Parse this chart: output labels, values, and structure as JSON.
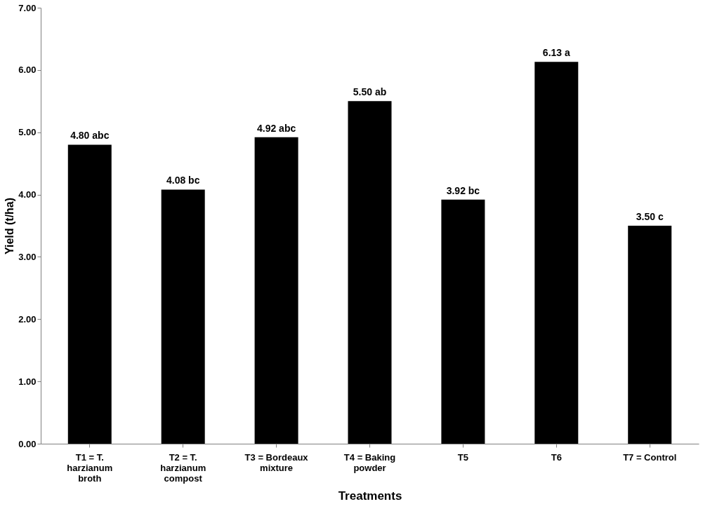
{
  "chart_data": {
    "type": "bar",
    "xlabel": "Treatments",
    "ylabel": "Yield (t/ha)",
    "categories": [
      "T1 = T. harzianum broth",
      "T2 = T. harzianum compost",
      "T3 = Bordeaux mixture",
      "T4 = Baking powder",
      "T5",
      "T6",
      "T7 = Control"
    ],
    "values": [
      4.8,
      4.08,
      4.92,
      5.5,
      3.92,
      6.13,
      3.5
    ],
    "value_labels": [
      "4.80 abc",
      "4.08 bc",
      "4.92 abc",
      "5.50 ab",
      "3.92 bc",
      "6.13 a",
      "3.50 c"
    ],
    "color": "#000000",
    "ylim": [
      0,
      7
    ],
    "yticks": [
      {
        "value": 0,
        "label": "0.00"
      },
      {
        "value": 1,
        "label": "1.00"
      },
      {
        "value": 2,
        "label": "2.00"
      },
      {
        "value": 3,
        "label": "3.00"
      },
      {
        "value": 4,
        "label": "4.00"
      },
      {
        "value": 5,
        "label": "5.00"
      },
      {
        "value": 6,
        "label": "6.00"
      },
      {
        "value": 7,
        "label": "7.00"
      }
    ],
    "grid": false
  }
}
